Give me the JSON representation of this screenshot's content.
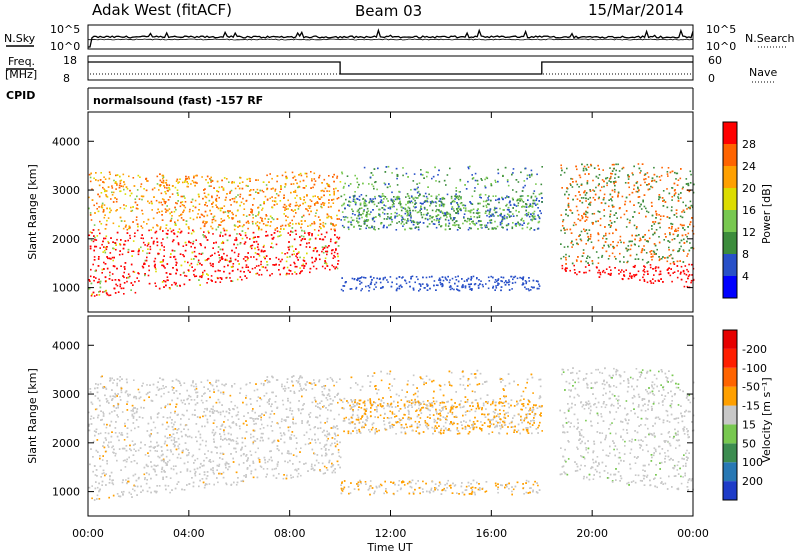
{
  "header": {
    "left_title": "Adak West (fitACF)",
    "center_title": "Beam 03",
    "right_title": "15/Mar/2014"
  },
  "top_panels": {
    "nsky_label": "N.Sky",
    "nsearch_label": "N.Search",
    "nsky_ticks": [
      "10^5",
      "10^0"
    ],
    "nsearch_ticks": [
      "10^5",
      "10^0"
    ],
    "freq_label": "Freq.",
    "freq_unit": "[MHz]",
    "freq_ticks": [
      "18",
      "8"
    ],
    "nave_label": "Nave",
    "nave_ticks": [
      "60",
      "0"
    ],
    "cpid_label": "CPID",
    "cpid_text": "normalsound (fast) -157 RF",
    "freq_series": [
      {
        "t": 0.0,
        "f": 15.5
      },
      {
        "t": 10.0,
        "f": 15.5
      },
      {
        "t": 10.0,
        "f": 10.5
      },
      {
        "t": 18.0,
        "f": 10.5
      },
      {
        "t": 18.0,
        "f": 15.5
      },
      {
        "t": 24.0,
        "f": 15.5
      }
    ]
  },
  "chart_data": [
    {
      "type": "heatmap",
      "name": "power",
      "ylabel": "Slant Range [km]",
      "ylim": [
        500,
        4600
      ],
      "yticks": [
        1000,
        2000,
        3000,
        4000
      ],
      "xlim": [
        0,
        24
      ],
      "xtick_labels": [
        "00:00",
        "04:00",
        "08:00",
        "12:00",
        "16:00",
        "20:00",
        "00:00"
      ],
      "colorbar": {
        "label": "Power [dB]",
        "ticks": [
          "4",
          "8",
          "12",
          "16",
          "20",
          "24",
          "28"
        ],
        "colors": [
          "#0000ff",
          "#2850c8",
          "#3c8c3c",
          "#78c850",
          "#dcdc00",
          "#ffa000",
          "#ff6400",
          "#ff0000"
        ]
      }
    },
    {
      "type": "heatmap",
      "name": "velocity",
      "ylabel": "Slant Range [km]",
      "ylim": [
        500,
        4600
      ],
      "yticks": [
        1000,
        2000,
        3000,
        4000
      ],
      "xlim": [
        0,
        24
      ],
      "xtick_labels": [
        "00:00",
        "04:00",
        "08:00",
        "12:00",
        "16:00",
        "20:00",
        "00:00"
      ],
      "colorbar": {
        "label": "Velocity [m s⁻¹]",
        "ticks": [
          "200",
          "100",
          "50",
          "15",
          "-15",
          "-50",
          "-100",
          "-200"
        ],
        "colors": [
          "#1e3cc8",
          "#2878b4",
          "#3c8c50",
          "#78c850",
          "#c8c8c8",
          "#ffa000",
          "#ff6400",
          "#ff1e00",
          "#e60000"
        ]
      }
    }
  ],
  "xaxis_label": "Time UT",
  "colors": {
    "ground_gray": "#c8c8c8"
  }
}
